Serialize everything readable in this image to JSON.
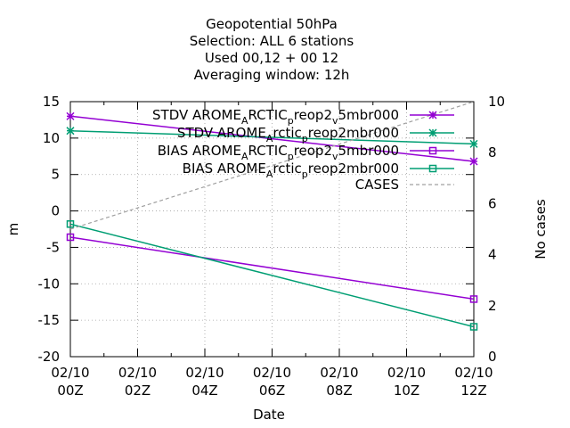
{
  "chart_data": {
    "type": "line",
    "title_lines": [
      "Geopotential 50hPa",
      "Selection: ALL       6 stations",
      "Used  00,12  + 00  12",
      "Averaging window: 12h"
    ],
    "xlabel": "Date",
    "ylabel": "m",
    "y2label": "No cases",
    "x": [
      "02/10 00Z",
      "02/10 12Z"
    ],
    "x_ticks": [
      {
        "line1": "02/10",
        "line2": "00Z"
      },
      {
        "line1": "02/10",
        "line2": "02Z"
      },
      {
        "line1": "02/10",
        "line2": "04Z"
      },
      {
        "line1": "02/10",
        "line2": "06Z"
      },
      {
        "line1": "02/10",
        "line2": "08Z"
      },
      {
        "line1": "02/10",
        "line2": "10Z"
      },
      {
        "line1": "02/10",
        "line2": "12Z"
      }
    ],
    "xlim_hours": [
      0,
      12
    ],
    "ylim": [
      -20,
      15
    ],
    "y_ticks": [
      15,
      10,
      5,
      0,
      -5,
      -10,
      -15,
      -20
    ],
    "y2lim": [
      0,
      10
    ],
    "y2_ticks": [
      10,
      8,
      6,
      4,
      2,
      0
    ],
    "grid": true,
    "legend_position": "top-right",
    "series": [
      {
        "name": "STDV AROME_ARCTIC_reop2_v5mbr000",
        "legend_parts": [
          "STDV AROME",
          "A",
          "RCTIC",
          "p",
          "reop2",
          "v",
          "5mbr000"
        ],
        "axis": "y",
        "color": "#9400d3",
        "marker": "star",
        "hours": [
          0,
          12
        ],
        "values": [
          13.0,
          6.8
        ]
      },
      {
        "name": "STDV AROME_Arctic_preop2mbr000",
        "legend_parts": [
          "STDV AROME",
          "A",
          "rctic",
          "p",
          "reop2mbr000"
        ],
        "axis": "y",
        "color": "#009e73",
        "marker": "star",
        "hours": [
          0,
          12
        ],
        "values": [
          11.0,
          9.2
        ]
      },
      {
        "name": "BIAS AROME_ARCTIC_reop2_v5mbr000",
        "legend_parts": [
          "BIAS AROME",
          "A",
          "RCTIC",
          "p",
          "reop2",
          "v",
          "5mbr000"
        ],
        "axis": "y",
        "color": "#9400d3",
        "marker": "square",
        "hours": [
          0,
          12
        ],
        "values": [
          -3.6,
          -12.1
        ]
      },
      {
        "name": "BIAS AROME_Arctic_preop2mbr000",
        "legend_parts": [
          "BIAS AROME",
          "A",
          "rctic",
          "p",
          "reop2mbr000"
        ],
        "axis": "y",
        "color": "#009e73",
        "marker": "square",
        "hours": [
          0,
          12
        ],
        "values": [
          -1.8,
          -15.9
        ]
      },
      {
        "name": "CASES",
        "legend_parts": [
          "CASES"
        ],
        "axis": "y2",
        "color": "#a0a0a0",
        "marker": "none",
        "dashed": true,
        "hours": [
          0,
          12
        ],
        "values": [
          5,
          10
        ]
      }
    ]
  }
}
